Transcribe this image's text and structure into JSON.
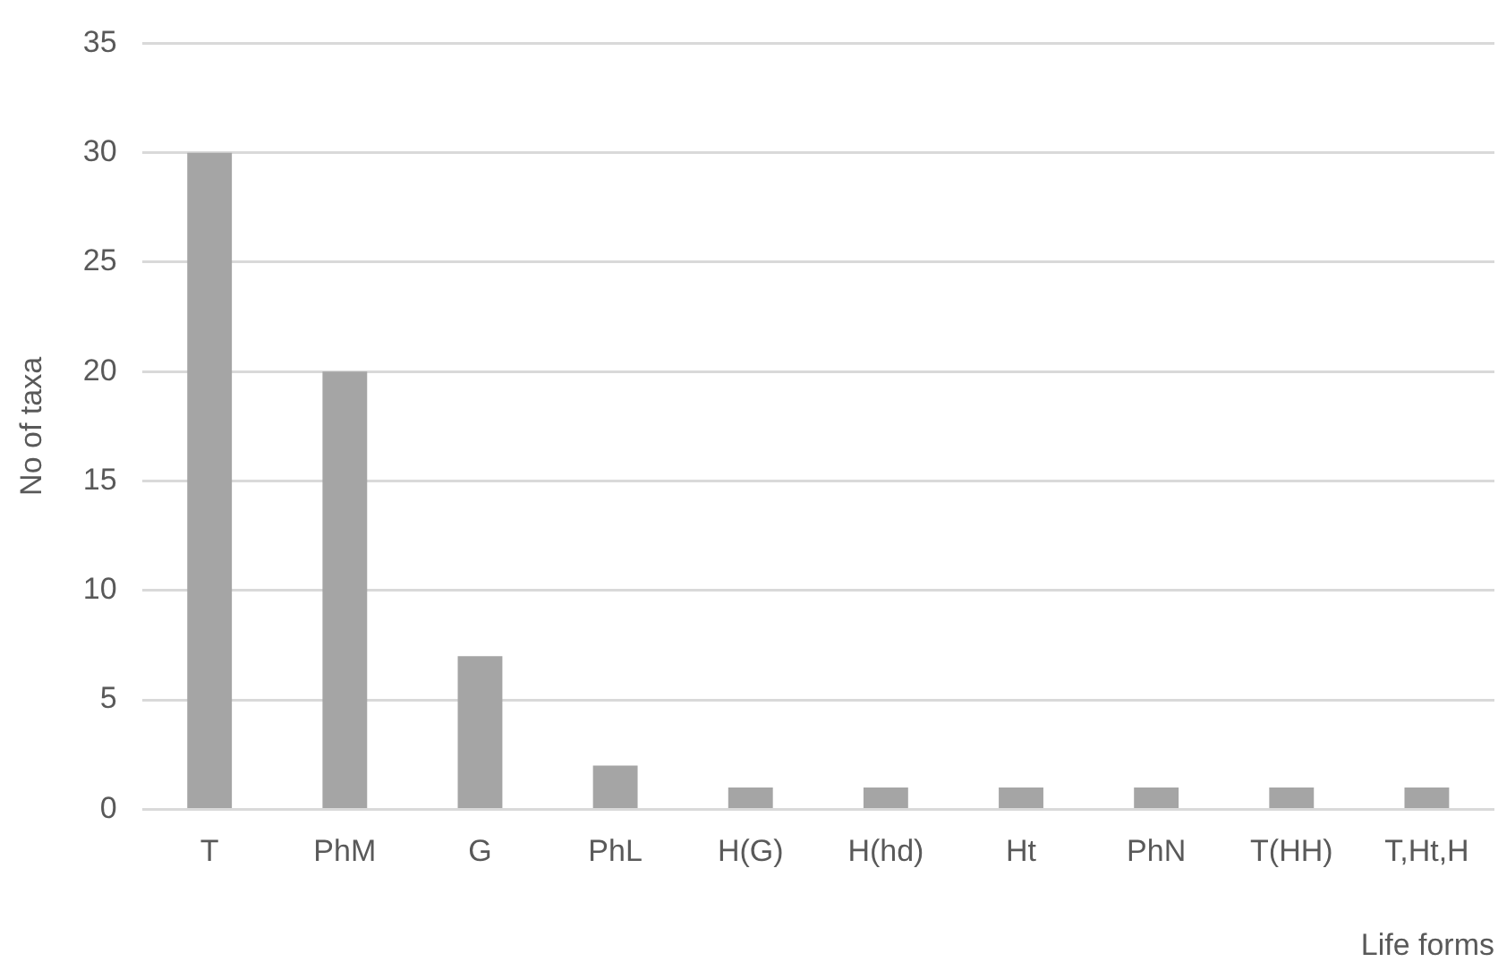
{
  "chart_data": {
    "type": "bar",
    "xlabel": "Life forms",
    "ylabel": "No of taxa",
    "categories": [
      "T",
      "PhM",
      "G",
      "PhL",
      "H(G)",
      "H(hd)",
      "Ht",
      "PhN",
      "T(HH)",
      "T,Ht,H"
    ],
    "values": [
      30,
      20,
      7,
      2,
      1,
      1,
      1,
      1,
      1,
      1
    ],
    "color": "#a5a5a5",
    "ylim": [
      0,
      35
    ],
    "yticks": [
      0,
      5,
      10,
      15,
      20,
      25,
      30,
      35
    ],
    "grid": "y"
  }
}
